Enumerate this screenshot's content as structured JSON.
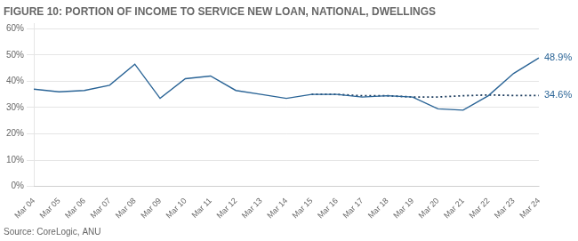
{
  "chart_data": {
    "type": "line",
    "title": "FIGURE 10: PORTION OF INCOME TO SERVICE NEW LOAN, NATIONAL, DWELLINGS",
    "source": "Source: CoreLogic, ANU",
    "categories": [
      "Mar 04",
      "Mar 05",
      "Mar 06",
      "Mar 07",
      "Mar 08",
      "Mar 09",
      "Mar 10",
      "Mar 11",
      "Mar 12",
      "Mar 13",
      "Mar 14",
      "Mar 15",
      "Mar 16",
      "Mar 17",
      "Mar 18",
      "Mar 19",
      "Mar 20",
      "Mar 21",
      "Mar 22",
      "Mar 23",
      "Mar 24"
    ],
    "series": [
      {
        "color": "#2a6496",
        "line_style": "solid",
        "values": [
          37.0,
          36.0,
          36.5,
          38.5,
          46.5,
          33.5,
          41.0,
          42.0,
          36.5,
          35.0,
          33.5,
          35.0,
          35.0,
          34.0,
          34.5,
          34.0,
          29.5,
          29.0,
          34.5,
          43.0,
          48.9
        ]
      },
      {
        "color": "#1a3a5c",
        "line_style": "dotted",
        "values": [
          null,
          null,
          null,
          null,
          null,
          null,
          null,
          null,
          null,
          null,
          null,
          35.0,
          35.0,
          34.5,
          34.5,
          34.0,
          34.0,
          34.5,
          34.8,
          34.6,
          34.6
        ]
      }
    ],
    "annotations": [
      {
        "text": "48.9%",
        "x": "Mar 24",
        "y": 48.9,
        "color": "#2a6496"
      },
      {
        "text": "34.6%",
        "x": "Mar 24",
        "y": 34.6,
        "color": "#2a6496"
      }
    ],
    "ylim": [
      0,
      62
    ],
    "yticks": [
      {
        "value": 0,
        "label": "0%"
      },
      {
        "value": 10,
        "label": "10%"
      },
      {
        "value": 20,
        "label": "20%"
      },
      {
        "value": 30,
        "label": "30%"
      },
      {
        "value": 40,
        "label": "40%"
      },
      {
        "value": 50,
        "label": "50%"
      },
      {
        "value": 60,
        "label": "60%"
      }
    ],
    "grid": true
  }
}
